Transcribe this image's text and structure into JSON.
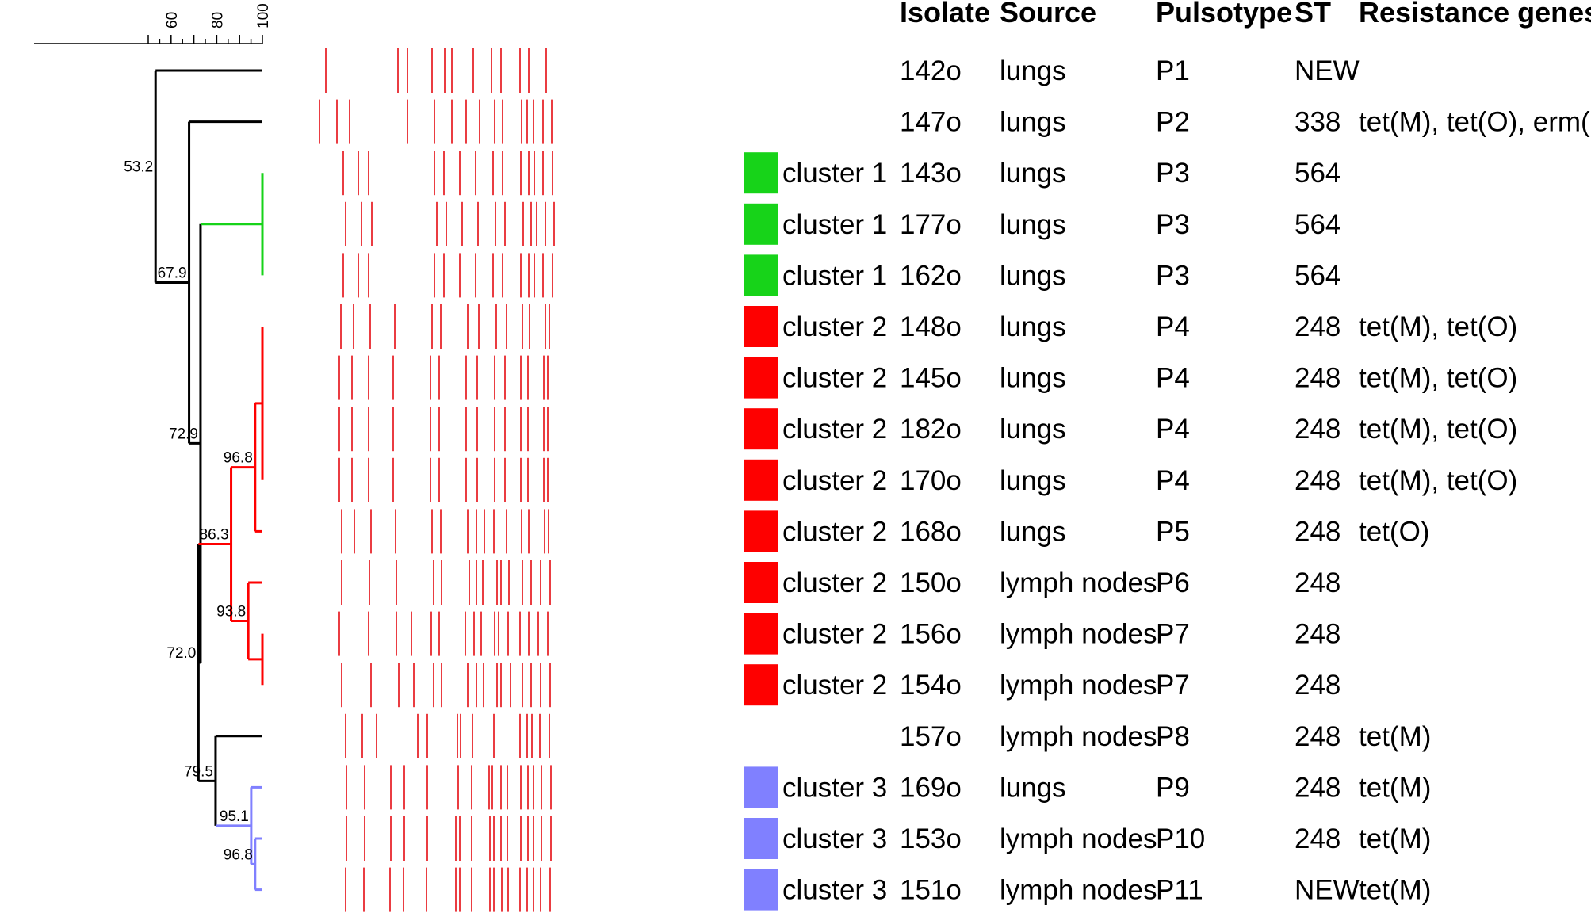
{
  "scale": {
    "min": 53.2,
    "max": 100,
    "ticks": [
      60,
      80,
      100
    ]
  },
  "headers": {
    "isolate": "Isolate",
    "source": "Source",
    "pulsotype": "Pulsotype",
    "st": "ST",
    "genes": "Resistance genes"
  },
  "colors": {
    "band": "#e8262c",
    "tree_default": "#000000",
    "cluster_1": "#17d319",
    "cluster_2": "#fe0000",
    "cluster_3": "#8080ff"
  },
  "nodes": [
    {
      "id": "n_root",
      "sim": 53.2,
      "children": [
        "leaf_0",
        "n_679"
      ],
      "label": "53.2",
      "color": "tree_default"
    },
    {
      "id": "n_679",
      "sim": 67.9,
      "children": [
        "leaf_1",
        "n_729"
      ],
      "label": "67.9",
      "color": "tree_default"
    },
    {
      "id": "n_729",
      "sim": 72.9,
      "children": [
        "n_c1",
        "n_720"
      ],
      "label": "72.9",
      "color": "tree_default"
    },
    {
      "id": "n_c1",
      "sim": 100,
      "children": [
        "leaf_2",
        "leaf_3",
        "leaf_4"
      ],
      "label": "",
      "color": "cluster_1"
    },
    {
      "id": "n_720",
      "sim": 72.0,
      "children": [
        "n_863",
        "n_795"
      ],
      "label": "72.0",
      "color": "tree_default"
    },
    {
      "id": "n_863",
      "sim": 86.3,
      "children": [
        "n_968a",
        "n_938"
      ],
      "label": "86.3",
      "color": "cluster_2"
    },
    {
      "id": "n_968a",
      "sim": 96.8,
      "children": [
        "n_p4",
        "leaf_9"
      ],
      "label": "96.8",
      "color": "cluster_2"
    },
    {
      "id": "n_p4",
      "sim": 100,
      "children": [
        "leaf_5",
        "leaf_6",
        "leaf_7",
        "leaf_8"
      ],
      "label": "",
      "color": "cluster_2"
    },
    {
      "id": "n_938",
      "sim": 93.8,
      "children": [
        "leaf_10",
        "n_p7"
      ],
      "label": "93.8",
      "color": "cluster_2"
    },
    {
      "id": "n_p7",
      "sim": 100,
      "children": [
        "leaf_11",
        "leaf_12"
      ],
      "label": "",
      "color": "cluster_2"
    },
    {
      "id": "n_795",
      "sim": 79.5,
      "children": [
        "leaf_13",
        "n_951"
      ],
      "label": "79.5",
      "color": "tree_default"
    },
    {
      "id": "n_951",
      "sim": 95.1,
      "children": [
        "leaf_14",
        "n_968b"
      ],
      "label": "95.1",
      "color": "cluster_3"
    },
    {
      "id": "n_968b",
      "sim": 96.8,
      "children": [
        "leaf_15",
        "leaf_16"
      ],
      "label": "96.8",
      "color": "cluster_3"
    }
  ],
  "leaf_colors": [
    "tree_default",
    "tree_default",
    "cluster_1",
    "cluster_1",
    "cluster_1",
    "cluster_2",
    "cluster_2",
    "cluster_2",
    "cluster_2",
    "cluster_2",
    "cluster_2",
    "cluster_2",
    "cluster_2",
    "tree_default",
    "cluster_3",
    "cluster_3",
    "cluster_3"
  ],
  "rows": [
    {
      "cluster": "",
      "color": "",
      "isolate": "142o",
      "source": "lungs",
      "pulsotype": "P1",
      "st": "NEW",
      "genes": "",
      "bands": [
        411,
        502,
        514,
        545,
        561,
        570,
        597,
        620,
        632,
        656,
        667,
        689
      ]
    },
    {
      "cluster": "",
      "color": "",
      "isolate": "147o",
      "source": "lungs",
      "pulsotype": "P2",
      "st": "338",
      "genes": "tet(M), tet(O), erm(B)",
      "bands": [
        403,
        425,
        441,
        514,
        548,
        570,
        588,
        605,
        624,
        634,
        658,
        665,
        673,
        685,
        696
      ]
    },
    {
      "cluster": "cluster 1",
      "color": "cluster_1",
      "isolate": "143o",
      "source": "lungs",
      "pulsotype": "P3",
      "st": "564",
      "genes": "",
      "bands": [
        433,
        452,
        465,
        548,
        560,
        580,
        600,
        622,
        634,
        657,
        667,
        674,
        685,
        697
      ]
    },
    {
      "cluster": "cluster 1",
      "color": "cluster_1",
      "isolate": "177o",
      "source": "lungs",
      "pulsotype": "P3",
      "st": "564",
      "genes": "",
      "bands": [
        436,
        456,
        469,
        551,
        563,
        583,
        603,
        625,
        637,
        660,
        670,
        677,
        688,
        699
      ]
    },
    {
      "cluster": "cluster 1",
      "color": "cluster_1",
      "isolate": "162o",
      "source": "lungs",
      "pulsotype": "P3",
      "st": "564",
      "genes": "",
      "bands": [
        433,
        452,
        465,
        548,
        560,
        580,
        600,
        622,
        634,
        657,
        667,
        674,
        685,
        697
      ]
    },
    {
      "cluster": "cluster 2",
      "color": "cluster_2",
      "isolate": "148o",
      "source": "lungs",
      "pulsotype": "P4",
      "st": "248",
      "genes": "tet(M), tet(O)",
      "bands": [
        430,
        446,
        467,
        498,
        545,
        556,
        590,
        604,
        626,
        639,
        659,
        668,
        688,
        693
      ]
    },
    {
      "cluster": "cluster 2",
      "color": "cluster_2",
      "isolate": "145o",
      "source": "lungs",
      "pulsotype": "P4",
      "st": "248",
      "genes": "tet(M), tet(O)",
      "bands": [
        428,
        444,
        465,
        496,
        543,
        554,
        588,
        602,
        624,
        637,
        657,
        666,
        686,
        691
      ]
    },
    {
      "cluster": "cluster 2",
      "color": "cluster_2",
      "isolate": "182o",
      "source": "lungs",
      "pulsotype": "P4",
      "st": "248",
      "genes": "tet(M), tet(O)",
      "bands": [
        428,
        444,
        465,
        496,
        543,
        554,
        588,
        602,
        624,
        637,
        657,
        666,
        686,
        691
      ]
    },
    {
      "cluster": "cluster 2",
      "color": "cluster_2",
      "isolate": "170o",
      "source": "lungs",
      "pulsotype": "P4",
      "st": "248",
      "genes": "tet(M), tet(O)",
      "bands": [
        428,
        444,
        465,
        496,
        543,
        554,
        588,
        602,
        624,
        637,
        657,
        666,
        686,
        691
      ]
    },
    {
      "cluster": "cluster 2",
      "color": "cluster_2",
      "isolate": "168o",
      "source": "lungs",
      "pulsotype": "P5",
      "st": "248",
      "genes": "tet(O)",
      "bands": [
        431,
        447,
        468,
        499,
        545,
        556,
        590,
        601,
        611,
        623,
        639,
        658,
        667,
        687,
        692
      ]
    },
    {
      "cluster": "cluster 2",
      "color": "cluster_2",
      "isolate": "150o",
      "source": "lymph nodes",
      "pulsotype": "P6",
      "st": "248",
      "genes": "",
      "bands": [
        431,
        466,
        500,
        547,
        557,
        592,
        601,
        609,
        627,
        632,
        642,
        659,
        670,
        682,
        694
      ]
    },
    {
      "cluster": "cluster 2",
      "color": "cluster_2",
      "isolate": "156o",
      "source": "lymph nodes",
      "pulsotype": "P7",
      "st": "248",
      "genes": "",
      "bands": [
        428,
        465,
        500,
        519,
        544,
        554,
        587,
        598,
        607,
        624,
        629,
        641,
        656,
        667,
        679,
        691
      ]
    },
    {
      "cluster": "cluster 2",
      "color": "cluster_2",
      "isolate": "154o",
      "source": "lymph nodes",
      "pulsotype": "P7",
      "st": "248",
      "genes": "",
      "bands": [
        431,
        468,
        503,
        522,
        547,
        557,
        590,
        601,
        610,
        627,
        632,
        644,
        659,
        670,
        682,
        694
      ]
    },
    {
      "cluster": "",
      "color": "",
      "isolate": "157o",
      "source": "lymph nodes",
      "pulsotype": "P8",
      "st": "248",
      "genes": "tet(M)",
      "bands": [
        436,
        457,
        475,
        527,
        539,
        577,
        581,
        596,
        623,
        656,
        665,
        671,
        681,
        693
      ]
    },
    {
      "cluster": "cluster 3",
      "color": "cluster_3",
      "isolate": "169o",
      "source": "lungs",
      "pulsotype": "P9",
      "st": "248",
      "genes": "tet(M)",
      "bands": [
        437,
        460,
        493,
        510,
        539,
        578,
        595,
        617,
        621,
        632,
        640,
        657,
        666,
        673,
        683,
        695
      ]
    },
    {
      "cluster": "cluster 3",
      "color": "cluster_3",
      "isolate": "153o",
      "source": "lymph nodes",
      "pulsotype": "P10",
      "st": "248",
      "genes": "tet(M)",
      "bands": [
        437,
        460,
        493,
        510,
        539,
        575,
        580,
        595,
        618,
        623,
        632,
        640,
        657,
        666,
        673,
        683,
        695
      ]
    },
    {
      "cluster": "cluster 3",
      "color": "cluster_3",
      "isolate": "151o",
      "source": "lymph nodes",
      "pulsotype": "P11",
      "st": "NEW",
      "genes": "tet(M)",
      "bands": [
        436,
        459,
        492,
        509,
        538,
        575,
        580,
        595,
        618,
        623,
        633,
        641,
        656,
        665,
        673,
        682,
        694
      ]
    }
  ]
}
